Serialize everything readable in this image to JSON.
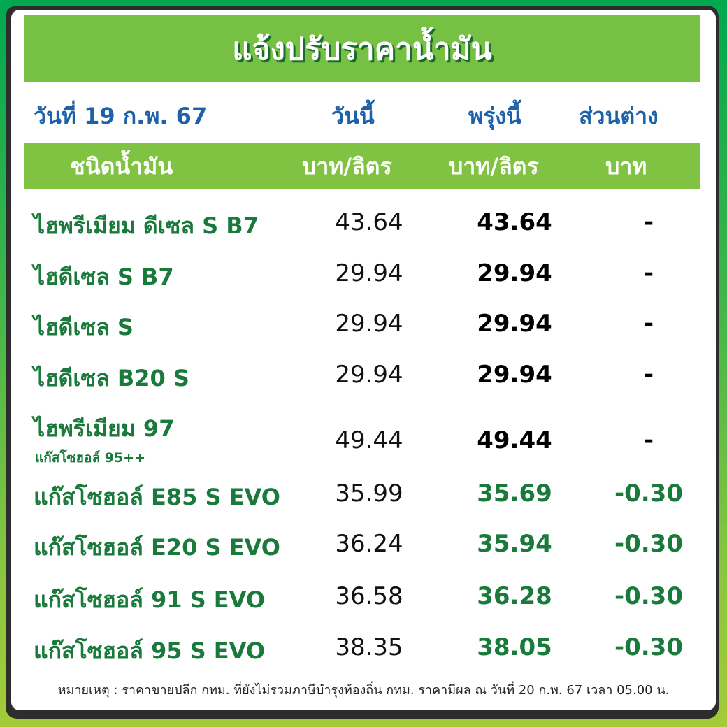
{
  "title": "แจ้งปรับราคาน้ำมัน",
  "header": {
    "date": "วันที่ 19 ก.พ. 67",
    "today": "วันนี้",
    "tomorrow": "พรุ่งนี้",
    "diff": "ส่วนต่าง"
  },
  "subheader": {
    "type": "ชนิดน้ำมัน",
    "today_unit": "บาท/ลิตร",
    "tomorrow_unit": "บาท/ลิตร",
    "diff_unit": "บาท"
  },
  "rows": [
    {
      "name": "ไฮพรีเมียม ดีเซล S B7",
      "today": "43.64",
      "tomorrow": "43.64",
      "diff": "-"
    },
    {
      "name": "ไฮดีเซล S B7",
      "today": "29.94",
      "tomorrow": "29.94",
      "diff": "-"
    },
    {
      "name": "ไฮดีเซล S",
      "today": "29.94",
      "tomorrow": "29.94",
      "diff": "-"
    },
    {
      "name": "ไฮดีเซล B20 S",
      "today": "29.94",
      "tomorrow": "29.94",
      "diff": "-"
    },
    {
      "name": "ไฮพรีเมียม 97",
      "note": "แก๊สโซฮอล์ 95++",
      "today": "49.44",
      "tomorrow": "49.44",
      "diff": "-"
    },
    {
      "name": "แก๊สโซฮอล์ E85 S EVO",
      "today": "35.99",
      "tomorrow": "35.69",
      "diff": "-0.30"
    },
    {
      "name": "แก๊สโซฮอล์ E20 S EVO",
      "today": "36.24",
      "tomorrow": "35.94",
      "diff": "-0.30"
    },
    {
      "name": "แก๊สโซฮอล์ 91 S EVO",
      "today": "36.58",
      "tomorrow": "36.28",
      "diff": "-0.30"
    },
    {
      "name": "แก๊สโซฮอล์ 95 S EVO",
      "today": "38.35",
      "tomorrow": "38.05",
      "diff": "-0.30"
    }
  ],
  "footer": "หมายเหตุ :  ราคาขายปลีก กทม. ที่ยังไม่รวมภาษีบำรุงท้องถิ่น กทม.  ราคามีผล ณ วันที่ 20 ก.พ. 67 เวลา 05.00 น.",
  "colors": {
    "brand_green": "#76c043",
    "name_green": "#1a7a3c",
    "header_blue": "#1d62a8"
  }
}
